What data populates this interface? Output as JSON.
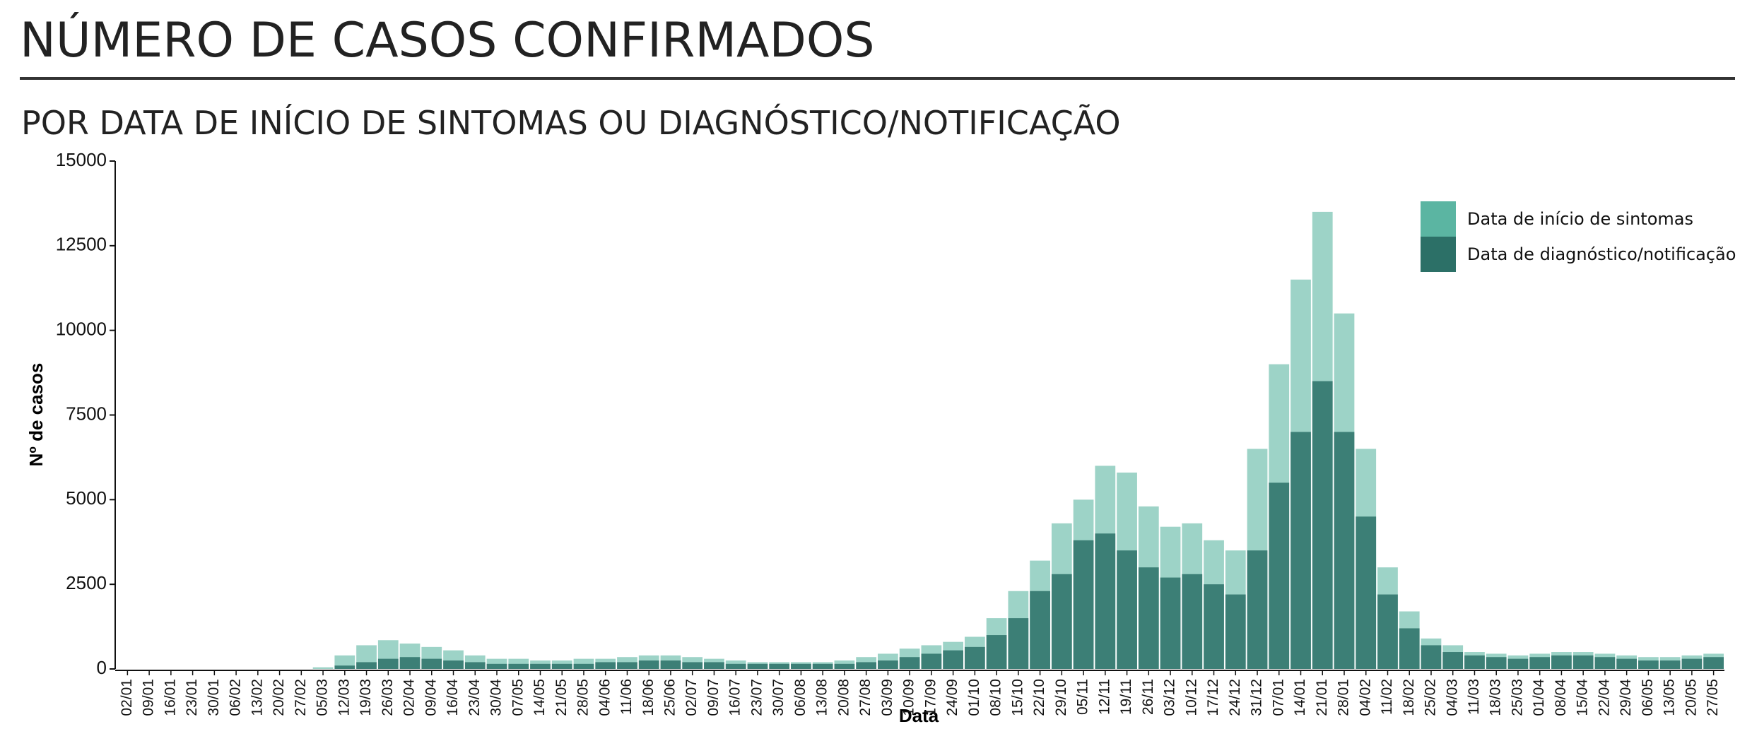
{
  "chart_data": {
    "type": "bar",
    "title": "NÚMERO DE CASOS CONFIRMADOS",
    "subtitle": "POR DATA DE INÍCIO DE SINTOMAS OU DIAGNÓSTICO/NOTIFICAÇÃO",
    "xlabel": "Data",
    "ylabel": "Nº de casos",
    "categories": [
      "02/01",
      "09/01",
      "16/01",
      "23/01",
      "30/01",
      "06/02",
      "13/02",
      "20/02",
      "27/02",
      "05/03",
      "12/03",
      "19/03",
      "26/03",
      "02/04",
      "09/04",
      "16/04",
      "23/04",
      "30/04",
      "07/05",
      "14/05",
      "21/05",
      "28/05",
      "04/06",
      "11/06",
      "18/06",
      "25/06",
      "02/07",
      "09/07",
      "16/07",
      "23/07",
      "30/07",
      "06/08",
      "13/08",
      "20/08",
      "27/08",
      "03/09",
      "10/09",
      "17/09",
      "24/09",
      "01/10",
      "08/10",
      "15/10",
      "22/10",
      "29/10",
      "05/11",
      "12/11",
      "19/11",
      "26/11",
      "03/12",
      "10/12",
      "17/12",
      "24/12",
      "31/12",
      "07/01",
      "14/01",
      "21/01",
      "28/01",
      "04/02",
      "11/02",
      "18/02",
      "25/02",
      "04/03",
      "11/03",
      "18/03",
      "25/03",
      "01/04",
      "08/04",
      "15/04",
      "22/04",
      "29/04",
      "06/05",
      "13/05",
      "20/05",
      "27/05"
    ],
    "series": [
      {
        "name": "Data de início de sintomas",
        "color": "#5bb5a2",
        "values": [
          0,
          0,
          0,
          0,
          0,
          0,
          0,
          0,
          0,
          50,
          400,
          700,
          850,
          750,
          650,
          550,
          400,
          300,
          300,
          250,
          250,
          300,
          300,
          350,
          400,
          400,
          350,
          300,
          250,
          200,
          200,
          200,
          200,
          250,
          350,
          450,
          600,
          700,
          800,
          950,
          1500,
          2300,
          3200,
          4300,
          5000,
          6000,
          5800,
          4800,
          4200,
          4300,
          3800,
          3500,
          6500,
          9000,
          11500,
          13500,
          10500,
          6500,
          3000,
          1700,
          900,
          700,
          500,
          450,
          400,
          450,
          500,
          500,
          450,
          400,
          350,
          350,
          400,
          450
        ]
      },
      {
        "name": "Data de diagnóstico/notificação",
        "color": "#2c7067",
        "values": [
          0,
          0,
          0,
          0,
          0,
          0,
          0,
          0,
          0,
          0,
          100,
          200,
          300,
          350,
          300,
          250,
          200,
          150,
          150,
          150,
          150,
          150,
          200,
          200,
          250,
          250,
          200,
          200,
          150,
          150,
          150,
          150,
          150,
          150,
          200,
          250,
          350,
          450,
          550,
          650,
          1000,
          1500,
          2300,
          2800,
          3800,
          4000,
          3500,
          3000,
          2700,
          2800,
          2500,
          2200,
          3500,
          5500,
          7000,
          8500,
          7000,
          4500,
          2200,
          1200,
          700,
          500,
          400,
          350,
          300,
          350,
          400,
          400,
          350,
          300,
          250,
          250,
          300,
          350
        ]
      }
    ],
    "ylim": [
      0,
      15000
    ],
    "yticks": [
      0,
      2500,
      5000,
      7500,
      10000,
      12500,
      15000
    ],
    "legend": "upper right"
  }
}
